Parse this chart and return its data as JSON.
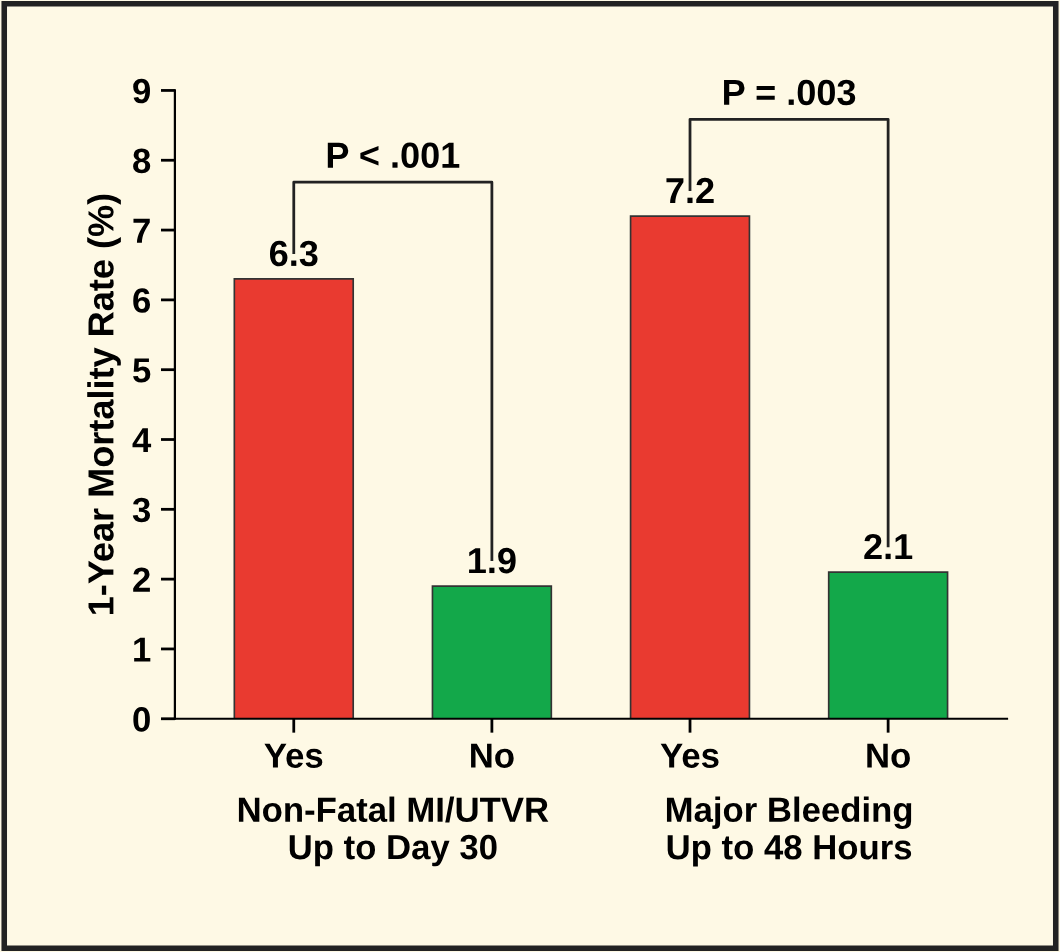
{
  "chart_data": {
    "type": "bar",
    "ylabel": "1-Year Mortality Rate (%)",
    "categories": [
      "Yes",
      "No",
      "Yes",
      "No"
    ],
    "values": [
      6.3,
      1.9,
      7.2,
      2.1
    ],
    "colors": [
      "#e93a30",
      "#13a84a",
      "#e93a30",
      "#13a84a"
    ],
    "ylim": [
      0,
      9
    ],
    "yticks": [
      0,
      1,
      2,
      3,
      4,
      5,
      6,
      7,
      8,
      9
    ],
    "data_labels": true,
    "grid": false,
    "legend": false,
    "annotations": [
      "P < .001",
      "P = .003",
      "Non-Fatal MI/UTVR\nUp to Day 30",
      "Major Bleeding\nUp to 48 Hours"
    ]
  }
}
